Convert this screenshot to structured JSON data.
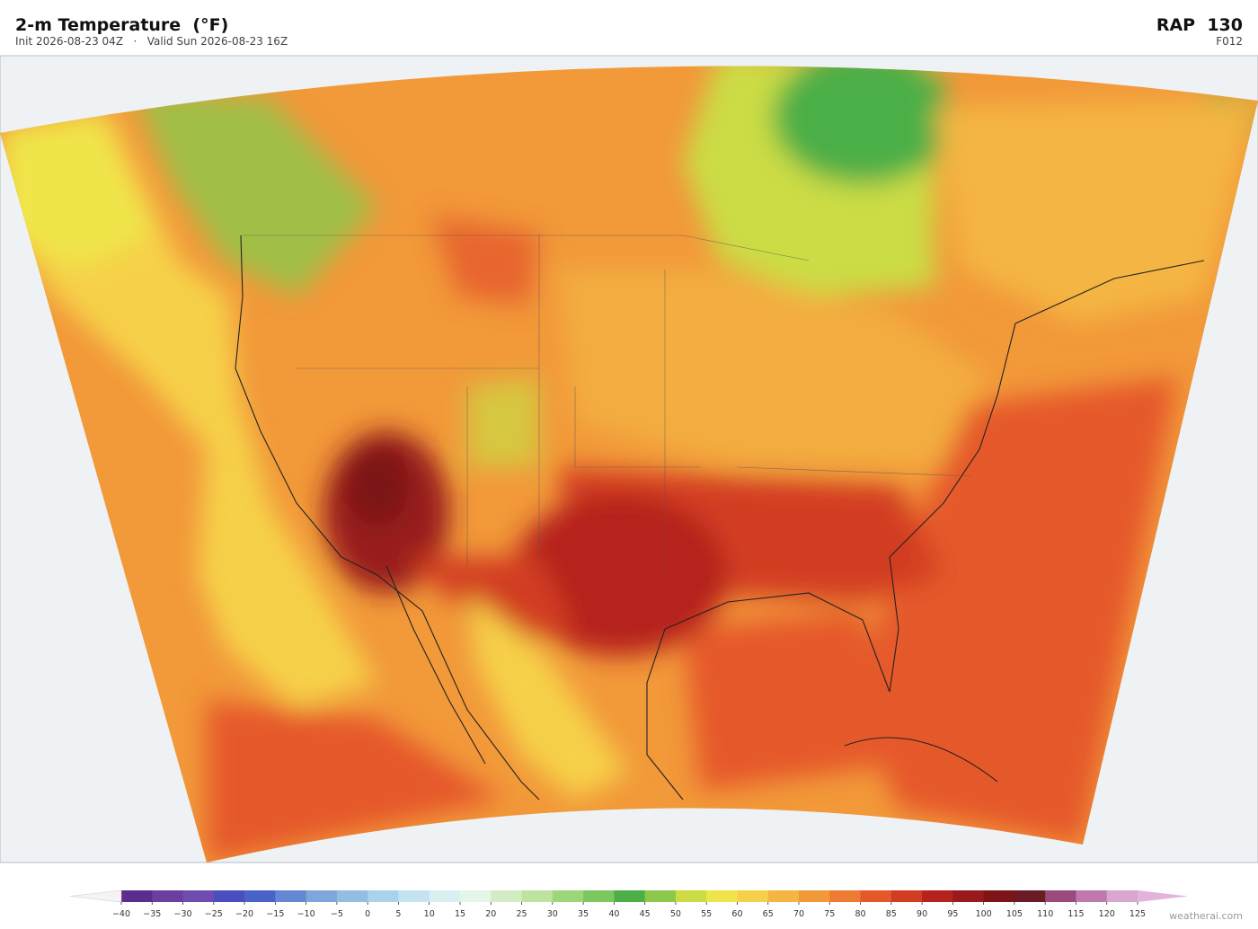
{
  "header": {
    "title": "2-m Temperature  (°F)",
    "subtitle": "Init 2026-08-23 04Z   ·   Valid Sun 2026-08-23 16Z",
    "model": "RAP  130",
    "forecast_hour": "F012"
  },
  "colorbar": {
    "ticks": [
      {
        "value": -40,
        "label": "−40"
      },
      {
        "value": -35,
        "label": "−35"
      },
      {
        "value": -30,
        "label": "−30"
      },
      {
        "value": -25,
        "label": "−25"
      },
      {
        "value": -20,
        "label": "−20"
      },
      {
        "value": -15,
        "label": "−15"
      },
      {
        "value": -10,
        "label": "−10"
      },
      {
        "value": -5,
        "label": "−5"
      },
      0,
      5,
      10,
      15,
      20,
      25,
      30,
      35,
      40,
      45,
      50,
      55,
      60,
      65,
      70,
      75,
      80,
      85,
      90,
      95,
      100,
      105,
      110,
      115,
      120,
      125
    ],
    "colors": [
      "#5a2d8f",
      "#6b3fa0",
      "#6f4db0",
      "#4a4fc0",
      "#4b63c8",
      "#6487d4",
      "#7ea6da",
      "#93bde2",
      "#a8d3ea",
      "#c3e3f0",
      "#daeff2",
      "#e6f5e6",
      "#d4ecc4",
      "#bde39e",
      "#9dd67a",
      "#7cc85f",
      "#4caf47",
      "#8cc84b",
      "#cbdc45",
      "#efe54a",
      "#f6d04a",
      "#f4b542",
      "#f2993a",
      "#ee7b33",
      "#e5582a",
      "#d23d22",
      "#b6221e",
      "#981a1c",
      "#7c1418",
      "#6b1b28",
      "#9b4a7c",
      "#bf79b0",
      "#d9a6cf"
    ],
    "extend_colors": [
      "#f4f4f4",
      "#e2b4da"
    ]
  },
  "watermark": "weatherai.com"
}
